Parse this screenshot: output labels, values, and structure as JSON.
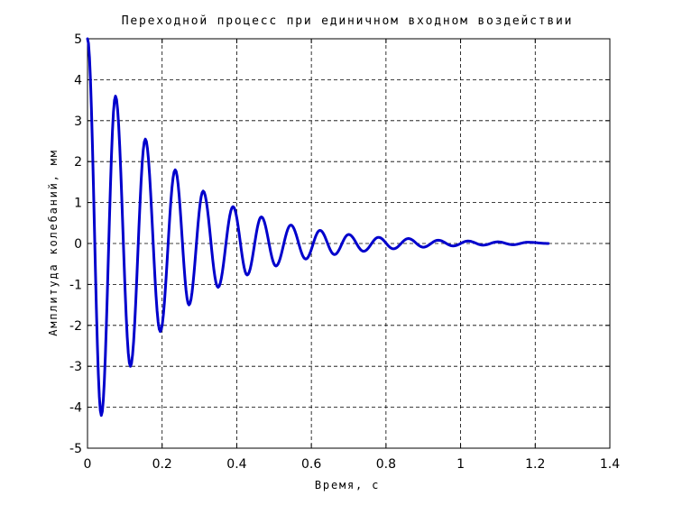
{
  "chart_data": {
    "type": "line",
    "title": "Переходной процесс при единичном входном воздействии",
    "xlabel": "Время, с",
    "ylabel": "Амплитуда колебаний, мм",
    "xlim": [
      0,
      1.4
    ],
    "ylim": [
      -5,
      5
    ],
    "xticks": [
      0,
      0.2,
      0.4,
      0.6,
      0.8,
      1,
      1.2,
      1.4
    ],
    "xtick_labels": [
      "0",
      "0.2",
      "0.4",
      "0.6",
      "0.8",
      "1",
      "1.2",
      "1.4"
    ],
    "yticks": [
      -5,
      -4,
      -3,
      -2,
      -1,
      0,
      1,
      2,
      3,
      4,
      5
    ],
    "ytick_labels": [
      "-5",
      "-4",
      "-3",
      "-2",
      "-1",
      "0",
      "1",
      "2",
      "3",
      "4",
      "5"
    ],
    "grid": true,
    "series": [
      {
        "color": "#0000cc",
        "x": [
          0,
          0.037,
          0.075,
          0.115,
          0.155,
          0.195,
          0.235,
          0.272,
          0.31,
          0.35,
          0.39,
          0.428,
          0.466,
          0.505,
          0.545,
          0.585,
          0.623,
          0.662,
          0.7,
          0.74,
          0.78,
          0.82,
          0.86,
          0.9,
          0.94,
          0.98,
          1.02,
          1.06,
          1.1,
          1.14,
          1.18,
          1.235
        ],
        "y": [
          5,
          -4.2,
          3.6,
          -3.0,
          2.55,
          -2.15,
          1.8,
          -1.5,
          1.28,
          -1.07,
          0.9,
          -0.77,
          0.65,
          -0.55,
          0.45,
          -0.38,
          0.32,
          -0.27,
          0.22,
          -0.19,
          0.15,
          -0.13,
          0.12,
          -0.09,
          0.08,
          -0.06,
          0.06,
          -0.04,
          0.04,
          -0.03,
          0.03,
          0.0
        ]
      }
    ]
  }
}
